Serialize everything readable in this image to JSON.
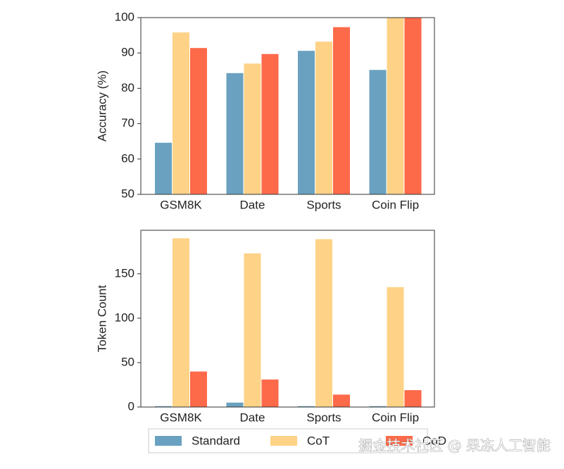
{
  "chart_data": [
    {
      "type": "bar",
      "ylabel": "Accuracy (%)",
      "categories": [
        "GSM8K",
        "Date",
        "Sports",
        "Coin Flip"
      ],
      "series": [
        {
          "name": "Standard",
          "color": "#6aa1c0",
          "values": [
            64.6,
            84.3,
            90.6,
            85.2
          ]
        },
        {
          "name": "CoT",
          "color": "#fed287",
          "values": [
            95.8,
            87.0,
            93.2,
            100
          ]
        },
        {
          "name": "CoD",
          "color": "#fd6a4a",
          "values": [
            91.4,
            89.7,
            97.3,
            100
          ]
        }
      ],
      "ylim": [
        50,
        100
      ],
      "yticks": [
        50,
        60,
        70,
        80,
        90,
        100
      ]
    },
    {
      "type": "bar",
      "ylabel": "Token Count",
      "categories": [
        "GSM8K",
        "Date",
        "Sports",
        "Coin Flip"
      ],
      "series": [
        {
          "name": "Standard",
          "color": "#6aa1c0",
          "values": [
            1,
            5,
            1,
            1
          ]
        },
        {
          "name": "CoT",
          "color": "#fed287",
          "values": [
            190,
            173,
            189,
            135
          ]
        },
        {
          "name": "CoD",
          "color": "#fd6a4a",
          "values": [
            40,
            31,
            14,
            19
          ]
        }
      ],
      "ylim": [
        0,
        199
      ],
      "yticks": [
        0,
        50,
        100,
        150
      ]
    }
  ],
  "watermark": "掘金技术社区 @ 果冻人工智能"
}
